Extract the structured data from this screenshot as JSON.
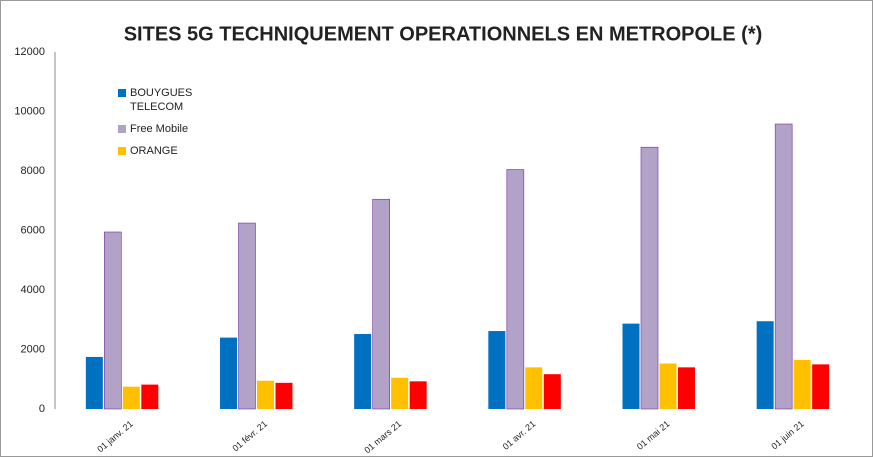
{
  "chart_data": {
    "type": "bar",
    "title": "SITES 5G TECHNIQUEMENT OPERATIONNELS EN METROPOLE (*)",
    "categories": [
      "01 janv. 21",
      "01 févr. 21",
      "01 mars 21",
      "01 avr. 21",
      "01 mai 21",
      "01 juin 21"
    ],
    "series": [
      {
        "name": "BOUYGUES TELECOM",
        "color": "#0070c0",
        "values": [
          1750,
          2400,
          2520,
          2620,
          2870,
          2950
        ]
      },
      {
        "name": "Free Mobile",
        "color": "#b3a2c7",
        "values": [
          5950,
          6250,
          7050,
          8050,
          8800,
          9580
        ]
      },
      {
        "name": "ORANGE",
        "color": "#ffc000",
        "values": [
          750,
          950,
          1050,
          1400,
          1530,
          1650
        ]
      },
      {
        "color": "#ff0000",
        "values": [
          820,
          880,
          930,
          1170,
          1400,
          1500
        ]
      }
    ],
    "ylim": [
      0,
      12000
    ],
    "yticks": [
      0,
      2000,
      4000,
      6000,
      8000,
      10000,
      12000
    ],
    "grid": true
  }
}
